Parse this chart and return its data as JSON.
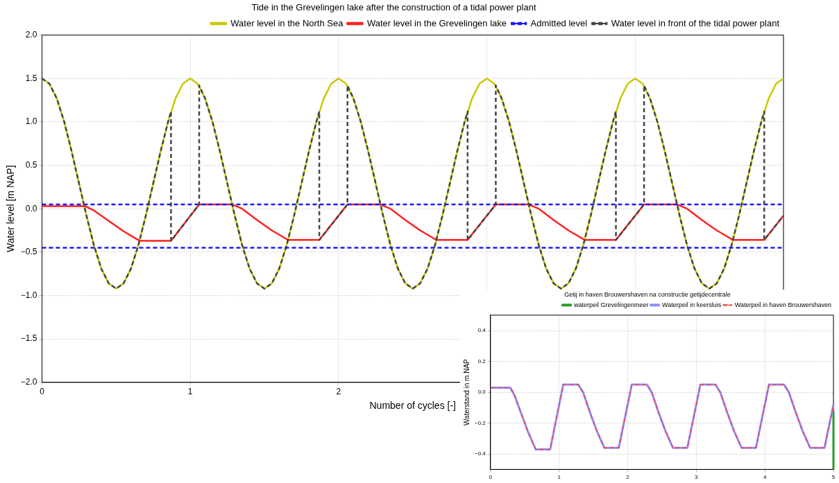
{
  "chart_data": [
    {
      "type": "line",
      "title": "Tide in the Grevelingen lake after the construction of a tidal power plant",
      "xlabel": "Number of cycles [-]",
      "ylabel": "Water level [m NAP]",
      "xlim": [
        0,
        5
      ],
      "xticks": [
        0,
        1,
        2,
        {
          "value": 3,
          "label": null
        },
        {
          "value": 4,
          "label": null
        },
        {
          "value": 5,
          "label": null
        }
      ],
      "ylim": [
        -2,
        2
      ],
      "ref_lines": [
        {
          "axis": "y",
          "value": -0.45,
          "color": "#1a1aff",
          "line_style": "dashed"
        }
      ],
      "yticks": [
        {
          "value": -2,
          "label": "−2.0"
        },
        {
          "value": -1.5,
          "label": "−1.5"
        },
        {
          "value": -1,
          "label": "−1.0"
        },
        {
          "value": -0.5,
          "label": "−0.5"
        },
        {
          "value": 0,
          "label": "0.0"
        },
        {
          "value": 0.5,
          "label": "0.5"
        },
        {
          "value": 1,
          "label": "1.0"
        },
        {
          "value": 1.5,
          "label": "1.5"
        },
        {
          "value": 2,
          "label": "2.0"
        }
      ],
      "grid": true,
      "legend": "top right",
      "marker": "none",
      "series": [
        {
          "name": "Water level in the North Sea",
          "color": "#c8c800",
          "x": [
            0,
            0.05,
            0.1,
            0.15,
            0.2,
            0.25,
            0.3,
            0.35,
            0.4,
            0.45,
            0.5,
            0.55,
            0.6,
            0.65,
            0.7,
            0.75,
            0.8,
            0.85,
            0.9,
            0.95,
            1,
            1.05,
            1.1,
            1.15,
            1.2,
            1.25,
            1.3,
            1.35,
            1.4,
            1.45,
            1.5,
            1.55,
            1.6,
            1.65,
            1.7,
            1.75,
            1.8,
            1.85,
            1.9,
            1.95,
            2,
            2.05,
            2.1,
            2.15,
            2.2,
            2.25,
            2.3,
            2.35,
            2.4,
            2.45,
            2.5,
            2.55,
            2.6,
            2.65,
            2.7,
            2.75,
            2.8,
            2.85,
            2.9,
            2.95,
            3,
            3.05,
            3.1,
            3.15,
            3.2,
            3.25,
            3.3,
            3.35,
            3.4,
            3.45,
            3.5,
            3.55,
            3.6,
            3.65,
            3.7,
            3.75,
            3.8,
            3.85,
            3.9,
            3.95,
            4,
            4.05,
            4.1,
            4.15,
            4.2,
            4.25,
            4.3,
            4.35,
            4.4,
            4.45,
            4.5,
            4.55,
            4.6,
            4.65,
            4.7,
            4.75,
            4.8,
            4.85,
            4.9,
            4.95,
            5
          ],
          "values": [
            1.5,
            1.44,
            1.27,
            1.0,
            0.66,
            0.29,
            -0.08,
            -0.42,
            -0.69,
            -0.86,
            -0.92,
            -0.86,
            -0.69,
            -0.42,
            -0.08,
            0.29,
            0.66,
            1.0,
            1.27,
            1.44,
            1.5,
            1.44,
            1.27,
            1.0,
            0.66,
            0.29,
            -0.08,
            -0.42,
            -0.69,
            -0.86,
            -0.92,
            -0.86,
            -0.69,
            -0.42,
            -0.08,
            0.29,
            0.66,
            1.0,
            1.27,
            1.44,
            1.5,
            1.44,
            1.27,
            1.0,
            0.66,
            0.29,
            -0.08,
            -0.42,
            -0.69,
            -0.86,
            -0.92,
            -0.86,
            -0.69,
            -0.42,
            -0.08,
            0.29,
            0.66,
            1.0,
            1.27,
            1.44,
            1.5,
            1.44,
            1.27,
            1.0,
            0.66,
            0.29,
            -0.08,
            -0.42,
            -0.69,
            -0.86,
            -0.92,
            -0.86,
            -0.69,
            -0.42,
            -0.08,
            0.29,
            0.66,
            1.0,
            1.27,
            1.44,
            1.5,
            1.44,
            1.27,
            1.0,
            0.66,
            0.29,
            -0.08,
            -0.42,
            -0.69,
            -0.86,
            -0.92,
            -0.86,
            -0.69,
            -0.42,
            -0.08,
            0.29,
            0.66,
            1.0,
            1.27,
            1.44,
            1.5
          ]
        },
        {
          "name": "Water level in the Grevelingen lake",
          "color": "#ff2020",
          "x": [
            0,
            0.29,
            0.35,
            0.45,
            0.55,
            0.62,
            0.66,
            0.87,
            1.06,
            1.28,
            1.35,
            1.45,
            1.55,
            1.62,
            1.66,
            1.87,
            2.06,
            2.28,
            2.35,
            2.45,
            2.55,
            2.62,
            2.66,
            2.87,
            3.06,
            3.28,
            3.35,
            3.45,
            3.55,
            3.62,
            3.66,
            3.87,
            4.06,
            4.28,
            4.35,
            4.45,
            4.55,
            4.62,
            4.66,
            4.87,
            5
          ],
          "values": [
            0.03,
            0.03,
            -0.02,
            -0.14,
            -0.26,
            -0.33,
            -0.37,
            -0.37,
            0.05,
            0.05,
            0.0,
            -0.13,
            -0.25,
            -0.32,
            -0.36,
            -0.36,
            0.05,
            0.05,
            0.0,
            -0.13,
            -0.25,
            -0.32,
            -0.36,
            -0.36,
            0.05,
            0.05,
            0.0,
            -0.13,
            -0.25,
            -0.32,
            -0.36,
            -0.36,
            0.05,
            0.05,
            0.0,
            -0.13,
            -0.25,
            -0.32,
            -0.36,
            -0.36,
            -0.08
          ]
        },
        {
          "name": "Admitted level",
          "color": "#1a1aff",
          "line_style": "dashed",
          "x": [
            0,
            5
          ],
          "values": [
            0.05,
            0.05
          ]
        },
        {
          "name": "Water level in front of the tidal power plant",
          "color": "#444444",
          "line_style": "dashed",
          "x": [
            0,
            0.05,
            0.1,
            0.15,
            0.2,
            0.25,
            0.3,
            0.35,
            0.4,
            0.45,
            0.5,
            0.55,
            0.6,
            0.65,
            0.7,
            0.75,
            0.8,
            0.85,
            0.87,
            0.87,
            1.06,
            1.06,
            1.1,
            1.15,
            1.2,
            1.25,
            1.3,
            1.35,
            1.4,
            1.45,
            1.5,
            1.55,
            1.6,
            1.65,
            1.7,
            1.75,
            1.8,
            1.85,
            1.87,
            1.87,
            2.06,
            2.06,
            2.1,
            2.15,
            2.2,
            2.25,
            2.3,
            2.35,
            2.4,
            2.45,
            2.5,
            2.55,
            2.6,
            2.65,
            2.7,
            2.75,
            2.8,
            2.85,
            2.87,
            2.87,
            3.06,
            3.06,
            3.1,
            3.15,
            3.2,
            3.25,
            3.3,
            3.35,
            3.4,
            3.45,
            3.5,
            3.55,
            3.6,
            3.65,
            3.7,
            3.75,
            3.8,
            3.85,
            3.87,
            3.87,
            4.06,
            4.06,
            4.1,
            4.15,
            4.2,
            4.25,
            4.3,
            4.35,
            4.4,
            4.45,
            4.5,
            4.55,
            4.6,
            4.65,
            4.7,
            4.75,
            4.8,
            4.85,
            4.87,
            4.87,
            5
          ],
          "values": [
            1.5,
            1.44,
            1.27,
            1.0,
            0.66,
            0.29,
            -0.08,
            -0.42,
            -0.69,
            -0.86,
            -0.92,
            -0.86,
            -0.69,
            -0.42,
            -0.08,
            0.29,
            0.66,
            1.0,
            1.12,
            -0.37,
            0.05,
            1.42,
            1.27,
            1.0,
            0.66,
            0.29,
            -0.08,
            -0.42,
            -0.69,
            -0.86,
            -0.92,
            -0.86,
            -0.69,
            -0.42,
            -0.08,
            0.29,
            0.66,
            1.0,
            1.12,
            -0.36,
            0.05,
            1.42,
            1.27,
            1.0,
            0.66,
            0.29,
            -0.08,
            -0.42,
            -0.69,
            -0.86,
            -0.92,
            -0.86,
            -0.69,
            -0.42,
            -0.08,
            0.29,
            0.66,
            1.0,
            1.12,
            -0.36,
            0.05,
            1.42,
            1.27,
            1.0,
            0.66,
            0.29,
            -0.08,
            -0.42,
            -0.69,
            -0.86,
            -0.92,
            -0.86,
            -0.69,
            -0.42,
            -0.08,
            0.29,
            0.66,
            1.0,
            1.12,
            -0.36,
            0.05,
            1.42,
            1.27,
            1.0,
            0.66,
            0.29,
            -0.08,
            -0.42,
            -0.69,
            -0.86,
            -0.92,
            -0.86,
            -0.69,
            -0.42,
            -0.08,
            0.29,
            0.66,
            1.0,
            1.12,
            -0.36,
            -0.08
          ]
        }
      ]
    },
    {
      "type": "line",
      "title": "Getij in haven Brouwershaven na constructie getijdecentrale",
      "ylabel": "Waterstand in m NAP",
      "xlim": [
        0,
        5
      ],
      "xticks": [
        0,
        1,
        2,
        3,
        4,
        5
      ],
      "ylim": [
        -0.5,
        0.5
      ],
      "yticks": [
        {
          "value": -0.4,
          "label": "−0.4"
        },
        {
          "value": -0.2,
          "label": "−0.2"
        },
        {
          "value": 0,
          "label": "0.0"
        },
        {
          "value": 0.2,
          "label": "0.2"
        },
        {
          "value": 0.4,
          "label": "0.4"
        }
      ],
      "grid": true,
      "legend": "top right",
      "marker": "none",
      "series": [
        {
          "name": "waterpeil Grevelingenmeer",
          "color": "#2a9a2a",
          "x": [
            5,
            5
          ],
          "values": [
            -0.5,
            -0.12
          ]
        },
        {
          "name": "Waterpeil in keersluis",
          "color": "#8c8cff",
          "x": [
            0,
            0.29,
            0.35,
            0.45,
            0.55,
            0.62,
            0.66,
            0.87,
            1.06,
            1.28,
            1.35,
            1.45,
            1.55,
            1.62,
            1.66,
            1.87,
            2.06,
            2.28,
            2.35,
            2.45,
            2.55,
            2.62,
            2.66,
            2.87,
            3.06,
            3.28,
            3.35,
            3.45,
            3.55,
            3.62,
            3.66,
            3.87,
            4.06,
            4.28,
            4.35,
            4.45,
            4.55,
            4.62,
            4.66,
            4.87,
            5
          ],
          "values": [
            0.03,
            0.03,
            -0.02,
            -0.14,
            -0.26,
            -0.33,
            -0.37,
            -0.37,
            0.05,
            0.05,
            0.0,
            -0.13,
            -0.25,
            -0.32,
            -0.36,
            -0.36,
            0.05,
            0.05,
            0.0,
            -0.13,
            -0.25,
            -0.32,
            -0.36,
            -0.36,
            0.05,
            0.05,
            0.0,
            -0.13,
            -0.25,
            -0.32,
            -0.36,
            -0.36,
            0.05,
            0.05,
            0.0,
            -0.13,
            -0.25,
            -0.32,
            -0.36,
            -0.36,
            -0.08
          ]
        },
        {
          "name": "Waterpeil in haven Brouwershaven",
          "color": "#ff4040",
          "line_style": "dashed",
          "x": [
            0,
            0.29,
            0.35,
            0.45,
            0.55,
            0.62,
            0.66,
            0.87,
            1.06,
            1.28,
            1.35,
            1.45,
            1.55,
            1.62,
            1.66,
            1.87,
            2.06,
            2.28,
            2.35,
            2.45,
            2.55,
            2.62,
            2.66,
            2.87,
            3.06,
            3.28,
            3.35,
            3.45,
            3.55,
            3.62,
            3.66,
            3.87,
            4.06,
            4.28,
            4.35,
            4.45,
            4.55,
            4.62,
            4.66,
            4.87,
            5
          ],
          "values": [
            0.03,
            0.03,
            -0.02,
            -0.14,
            -0.26,
            -0.33,
            -0.37,
            -0.37,
            0.05,
            0.05,
            0.0,
            -0.13,
            -0.25,
            -0.32,
            -0.36,
            -0.36,
            0.05,
            0.05,
            0.0,
            -0.13,
            -0.25,
            -0.32,
            -0.36,
            -0.36,
            0.05,
            0.05,
            0.0,
            -0.13,
            -0.25,
            -0.32,
            -0.36,
            -0.36,
            0.05,
            0.05,
            0.0,
            -0.13,
            -0.25,
            -0.32,
            -0.36,
            -0.36,
            -0.08
          ]
        }
      ]
    }
  ]
}
